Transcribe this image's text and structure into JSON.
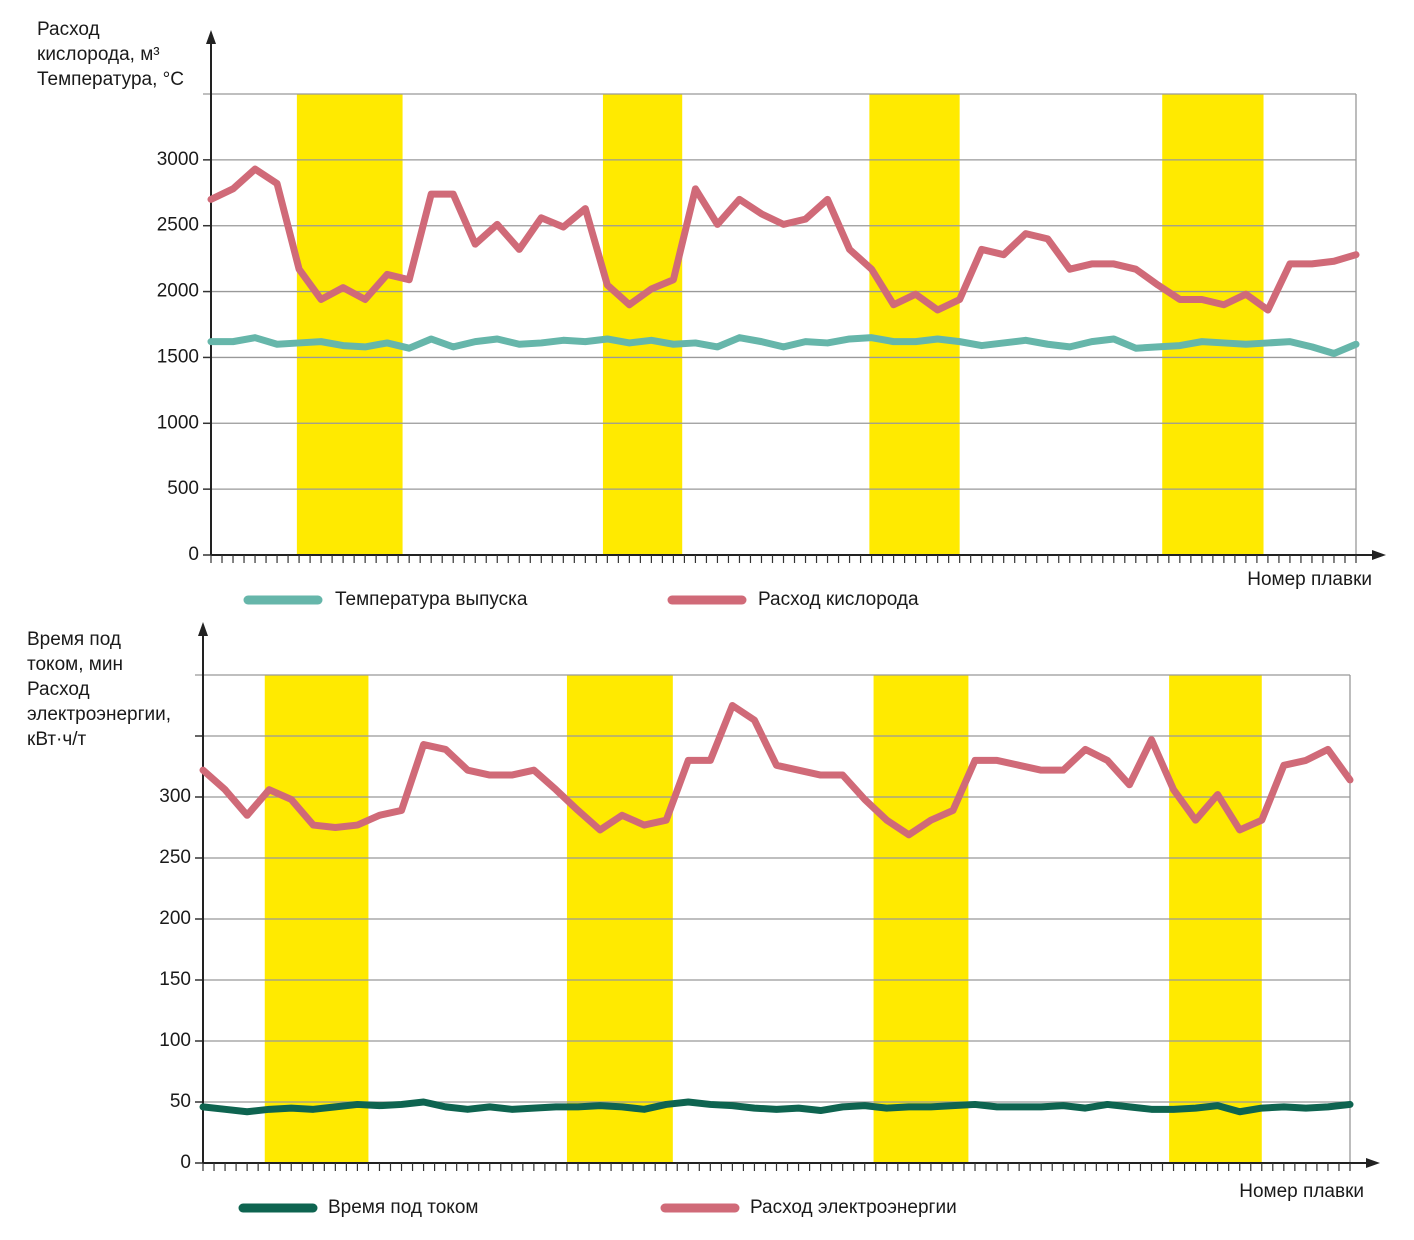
{
  "chart_data": [
    {
      "type": "line",
      "y_label": [
        "Расход",
        "кислорода, м³",
        "Температура, °С"
      ],
      "x_label": "Номер плавки",
      "ylim": [
        0,
        3500
      ],
      "yticks": [
        0,
        500,
        1000,
        1500,
        2000,
        2500,
        3000
      ],
      "xlim": [
        0,
        52
      ],
      "grid": true,
      "bands": [
        [
          3.9,
          8.7
        ],
        [
          17.8,
          21.4
        ],
        [
          29.9,
          34.0
        ],
        [
          43.2,
          47.8
        ]
      ],
      "band_color": "#ffea00",
      "series": [
        {
          "name": "Температура выпуска",
          "color": "#66b6aa",
          "values": [
            1620,
            1620,
            1650,
            1600,
            1610,
            1620,
            1590,
            1580,
            1610,
            1570,
            1640,
            1580,
            1620,
            1640,
            1600,
            1610,
            1630,
            1620,
            1640,
            1610,
            1630,
            1600,
            1610,
            1580,
            1650,
            1620,
            1580,
            1620,
            1610,
            1640,
            1650,
            1620,
            1620,
            1640,
            1620,
            1590,
            1610,
            1630,
            1600,
            1580,
            1620,
            1640,
            1570,
            1580,
            1590,
            1620,
            1610,
            1600,
            1610,
            1620,
            1580,
            1530,
            1600
          ]
        },
        {
          "name": "Расход кислорода",
          "color": "#d06a78",
          "values": [
            2700,
            2780,
            2930,
            2820,
            2170,
            1940,
            2030,
            1940,
            2130,
            2090,
            2740,
            2740,
            2360,
            2510,
            2320,
            2560,
            2490,
            2630,
            2050,
            1900,
            2020,
            2090,
            2780,
            2510,
            2700,
            2590,
            2510,
            2550,
            2700,
            2320,
            2170,
            1900,
            1980,
            1860,
            1940,
            2320,
            2280,
            2440,
            2400,
            2170,
            2210,
            2210,
            2170,
            2050,
            1940,
            1940,
            1900,
            1980,
            1860,
            2210,
            2210,
            2230,
            2280
          ]
        }
      ]
    },
    {
      "type": "line",
      "y_label": [
        "Время под",
        "током, мин",
        "Расход",
        "электроэнергии,",
        "кВт·ч/т"
      ],
      "x_label": "Номер плавки",
      "ylim": [
        0,
        400
      ],
      "yticks": [
        0,
        50,
        100,
        150,
        200,
        250,
        300,
        350
      ],
      "ytick_labels_hidden": [
        350
      ],
      "xlim": [
        0,
        52
      ],
      "grid": true,
      "bands": [
        [
          2.8,
          7.5
        ],
        [
          16.5,
          21.3
        ],
        [
          30.4,
          34.7
        ],
        [
          43.8,
          48.0
        ]
      ],
      "band_color": "#ffea00",
      "series": [
        {
          "name": "Время под током",
          "color": "#0e6450",
          "values": [
            46,
            44,
            42,
            44,
            45,
            44,
            46,
            48,
            47,
            48,
            50,
            46,
            44,
            46,
            44,
            45,
            46,
            46,
            47,
            46,
            44,
            48,
            50,
            48,
            47,
            45,
            44,
            45,
            43,
            46,
            47,
            45,
            46,
            46,
            47,
            48,
            46,
            46,
            46,
            47,
            45,
            48,
            46,
            44,
            44,
            45,
            47,
            42,
            45,
            46,
            45,
            46,
            48
          ]
        },
        {
          "name": "Расход электроэнергии",
          "color": "#d06a78",
          "values": [
            322,
            306,
            285,
            306,
            298,
            277,
            275,
            277,
            285,
            289,
            343,
            339,
            322,
            318,
            318,
            322,
            306,
            289,
            273,
            285,
            277,
            281,
            330,
            330,
            375,
            363,
            326,
            322,
            318,
            318,
            298,
            281,
            269,
            281,
            289,
            330,
            330,
            326,
            322,
            322,
            339,
            330,
            310,
            347,
            306,
            281,
            302,
            273,
            281,
            326,
            330,
            339,
            314
          ]
        }
      ]
    }
  ]
}
